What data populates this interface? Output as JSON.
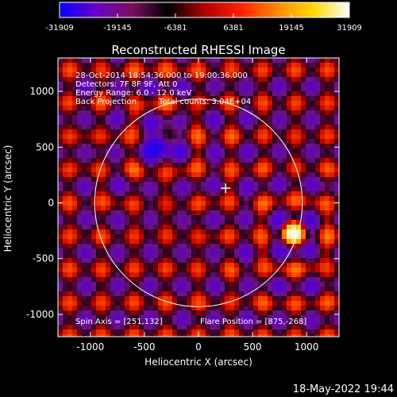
{
  "chart_data": {
    "type": "heatmap",
    "title": "Reconstructed RHESSI Image",
    "xlabel": "Heliocentric X (arcsec)",
    "ylabel": "Heliocentric Y (arcsec)",
    "xlim": [
      -1300,
      1300
    ],
    "ylim": [
      -1200,
      1300
    ],
    "xticks": [
      -1000,
      -500,
      0,
      500,
      1000
    ],
    "yticks": [
      -1000,
      -500,
      0,
      500,
      1000
    ],
    "colorbar": {
      "min": -31909,
      "max": 31909,
      "ticks": [
        -31909,
        -19145,
        -6381,
        6381,
        19145,
        31909
      ],
      "colors": [
        "#0000ff",
        "#6a00c8",
        "#7a1060",
        "#000000",
        "#b00000",
        "#ff2000",
        "#ff8800",
        "#ffd800",
        "#ffffff"
      ]
    },
    "annotations": {
      "line1": "28-Oct-2014 18:54:36.000 to 19:00:36.000",
      "line2": "Detectors: 7F 8F 9F, Att 0",
      "line3": "Energy Range: 6.0 - 12.0 keV",
      "line4a": "Back Projection",
      "line4b": "Total counts: 3.04E+04",
      "spin_axis": "Spin Axis = [251,132]",
      "flare_position": "Flare Position = [875,-268]",
      "footer_date": "18-May-2022 19:44"
    },
    "solar_disk": {
      "center": [
        0,
        0
      ],
      "radius_arcsec": 960
    },
    "spin_axis_point": [
      251,
      132
    ],
    "flare_point": [
      875,
      -268
    ],
    "sources": [
      {
        "x": 875,
        "y": -268,
        "strength": 31909
      },
      {
        "x": -350,
        "y": 530,
        "strength": -31909
      }
    ]
  }
}
